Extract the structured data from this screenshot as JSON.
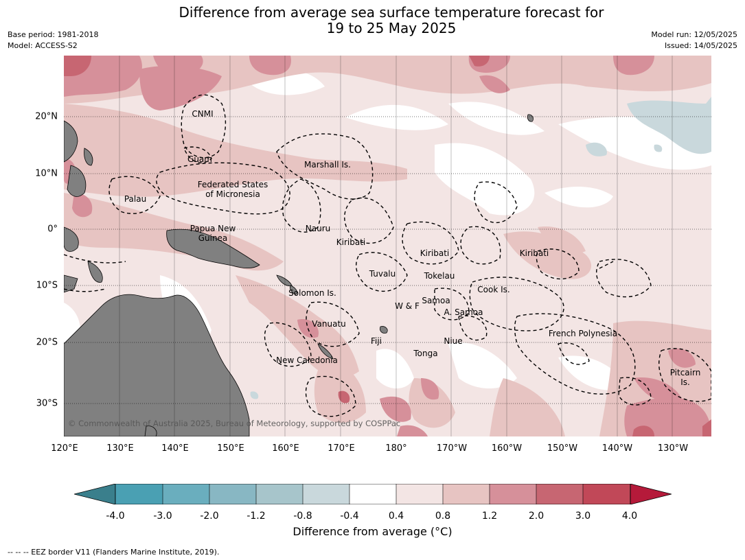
{
  "title_line1": "Difference from average sea surface temperature forecast for",
  "title_line2": "19 to 25 May 2025",
  "base_period": "Base period: 1981-2018",
  "model": "Model: ACCESS-S2",
  "model_run": "Model run: 12/05/2025",
  "issued": "Issued: 14/05/2025",
  "copyright": "© Commonwealth of Australia 2025, Bureau of Meteorology, supported by COSPPac",
  "lat_ticks": [
    "20°N",
    "10°N",
    "0°",
    "10°S",
    "20°S",
    "30°S"
  ],
  "lon_ticks": [
    "120°E",
    "130°E",
    "140°E",
    "150°E",
    "160°E",
    "170°E",
    "180°",
    "170°W",
    "160°W",
    "150°W",
    "140°W",
    "130°W"
  ],
  "place_labels": {
    "cnmi": "CNMI",
    "guam": "Guam",
    "marshall": "Marshall Is.",
    "fsm1": "Federated States",
    "fsm2": "of Micronesia",
    "palau": "Palau",
    "png1": "Papua New",
    "png2": "Guinea",
    "nauru": "Nauru",
    "kiribati_w": "Kiribati",
    "kiribati_c": "Kiribati",
    "kiribati_e": "Kiribati",
    "tuvalu": "Tuvalu",
    "tokelau": "Tokelau",
    "solomon": "Solomon Is.",
    "samoa": "Samoa",
    "wf": "W & F",
    "asamoa": "A. Samoa",
    "cook": "Cook Is.",
    "vanuatu": "Vanuatu",
    "fiji": "Fiji",
    "niue": "Niue",
    "tonga": "Tonga",
    "frenchpoly": "French Polynesia",
    "newcal": "New Caledonia",
    "pitcairn1": "Pitcairn",
    "pitcairn2": "Is."
  },
  "colorbar": {
    "labels": [
      "-4.0",
      "-3.0",
      "-2.0",
      "-1.2",
      "-0.8",
      "-0.4",
      "0.4",
      "0.8",
      "1.2",
      "2.0",
      "3.0",
      "4.0"
    ],
    "colors": [
      "#3a7f8c",
      "#4aa0b3",
      "#6aaebe",
      "#88b7c3",
      "#a7c5cb",
      "#c9d8dc",
      "#ffffff",
      "#f3e5e4",
      "#e7c4c2",
      "#d6909a",
      "#c76672",
      "#c14858",
      "#b51a3a"
    ],
    "title": "Difference from average ($^\\circ$C)",
    "title_display": "Difference from average (°C)"
  },
  "footnote": "--  --  -- EEZ border V11 (Flanders Marine Institute, 2019)."
}
